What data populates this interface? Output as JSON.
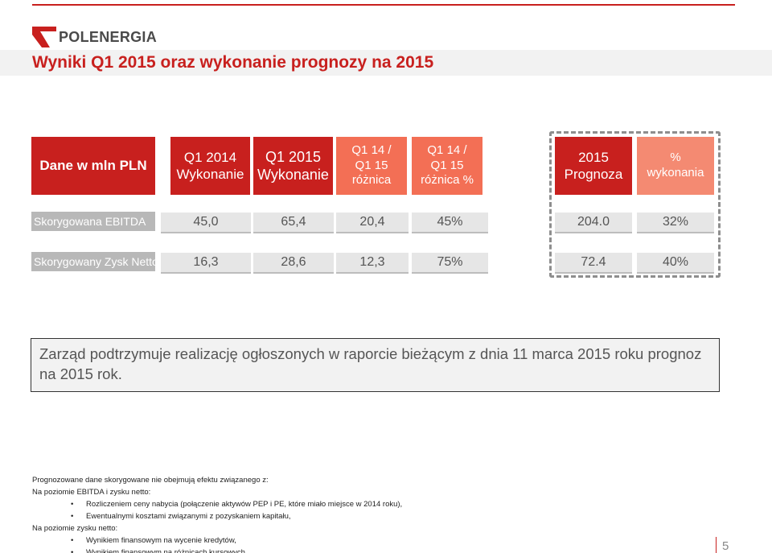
{
  "brand": {
    "name": "POLENERGIA",
    "accent": "#c8201e"
  },
  "title": "Wyniki Q1 2015 oraz wykonanie prognozy na 2015",
  "table": {
    "header_label": "Dane w mln PLN",
    "columns": [
      {
        "line1": "Q1 2014",
        "line2": "Wykonanie",
        "line3": ""
      },
      {
        "line1": "Q1 2015",
        "line2": "Wykonanie",
        "line3": ""
      },
      {
        "line1": "Q1 14 /",
        "line2": "Q1 15",
        "line3": "różnica"
      },
      {
        "line1": "Q1 14 /",
        "line2": "Q1 15",
        "line3": "różnica %"
      },
      {
        "line1": "2015",
        "line2": "Prognoza",
        "line3": ""
      },
      {
        "line1": "%",
        "line2": "wykonania",
        "line3": ""
      }
    ],
    "rows": [
      {
        "label": "Skorygowana EBITDA",
        "values": [
          "45,0",
          "65,4",
          "20,4",
          "45%",
          "204.0",
          "32%"
        ]
      },
      {
        "label": "Skorygowany Zysk Netto",
        "values": [
          "16,3",
          "28,6",
          "12,3",
          "75%",
          "72.4",
          "40%"
        ]
      }
    ]
  },
  "notice": "Zarząd podtrzymuje realizację ogłoszonych w raporcie bieżącym z dnia 11 marca 2015 roku prognoz na 2015 rok.",
  "footnote": {
    "intro": "Prognozowane dane skorygowane nie obejmują efektu związanego z:",
    "group1_title": "Na poziomie EBITDA i zysku netto:",
    "group1_items": [
      "Rozliczeniem ceny nabycia (połączenie aktywów PEP i PE, które miało miejsce w 2014 roku),",
      "Ewentualnymi kosztami związanymi z pozyskaniem kapitału,"
    ],
    "group2_title": "Na poziomie zysku netto:",
    "group2_items": [
      "Wynikiem finansowym na wycenie kredytów,",
      "Wynikiem finansowym na różnicach kursowych."
    ]
  },
  "page_number": "5"
}
